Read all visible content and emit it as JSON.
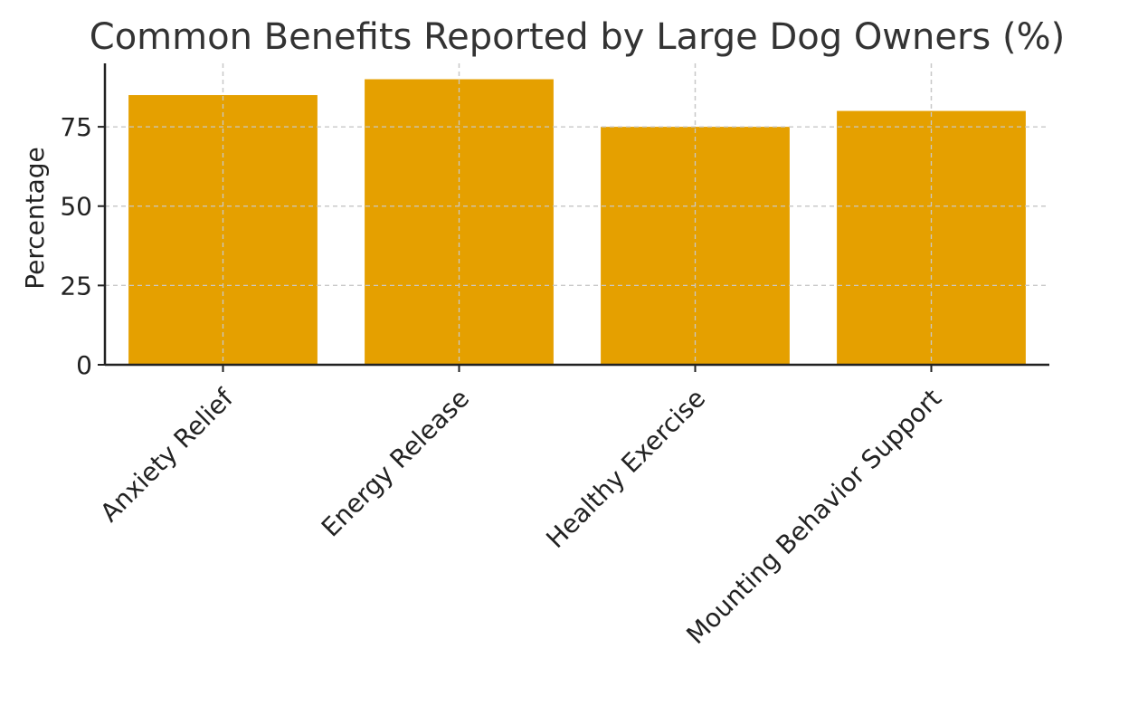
{
  "chart_data": {
    "type": "bar",
    "title": "Common Benefits Reported by Large Dog Owners (%)",
    "xlabel": "",
    "ylabel": "Percentage",
    "categories": [
      "Anxiety Relief",
      "Energy Release",
      "Healthy Exercise",
      "Mounting Behavior Support"
    ],
    "values": [
      85,
      90,
      75,
      80
    ],
    "ylim": [
      0,
      95
    ],
    "yticks": [
      0,
      25,
      50,
      75
    ],
    "grid": true,
    "bar_color": "#E5A000"
  }
}
